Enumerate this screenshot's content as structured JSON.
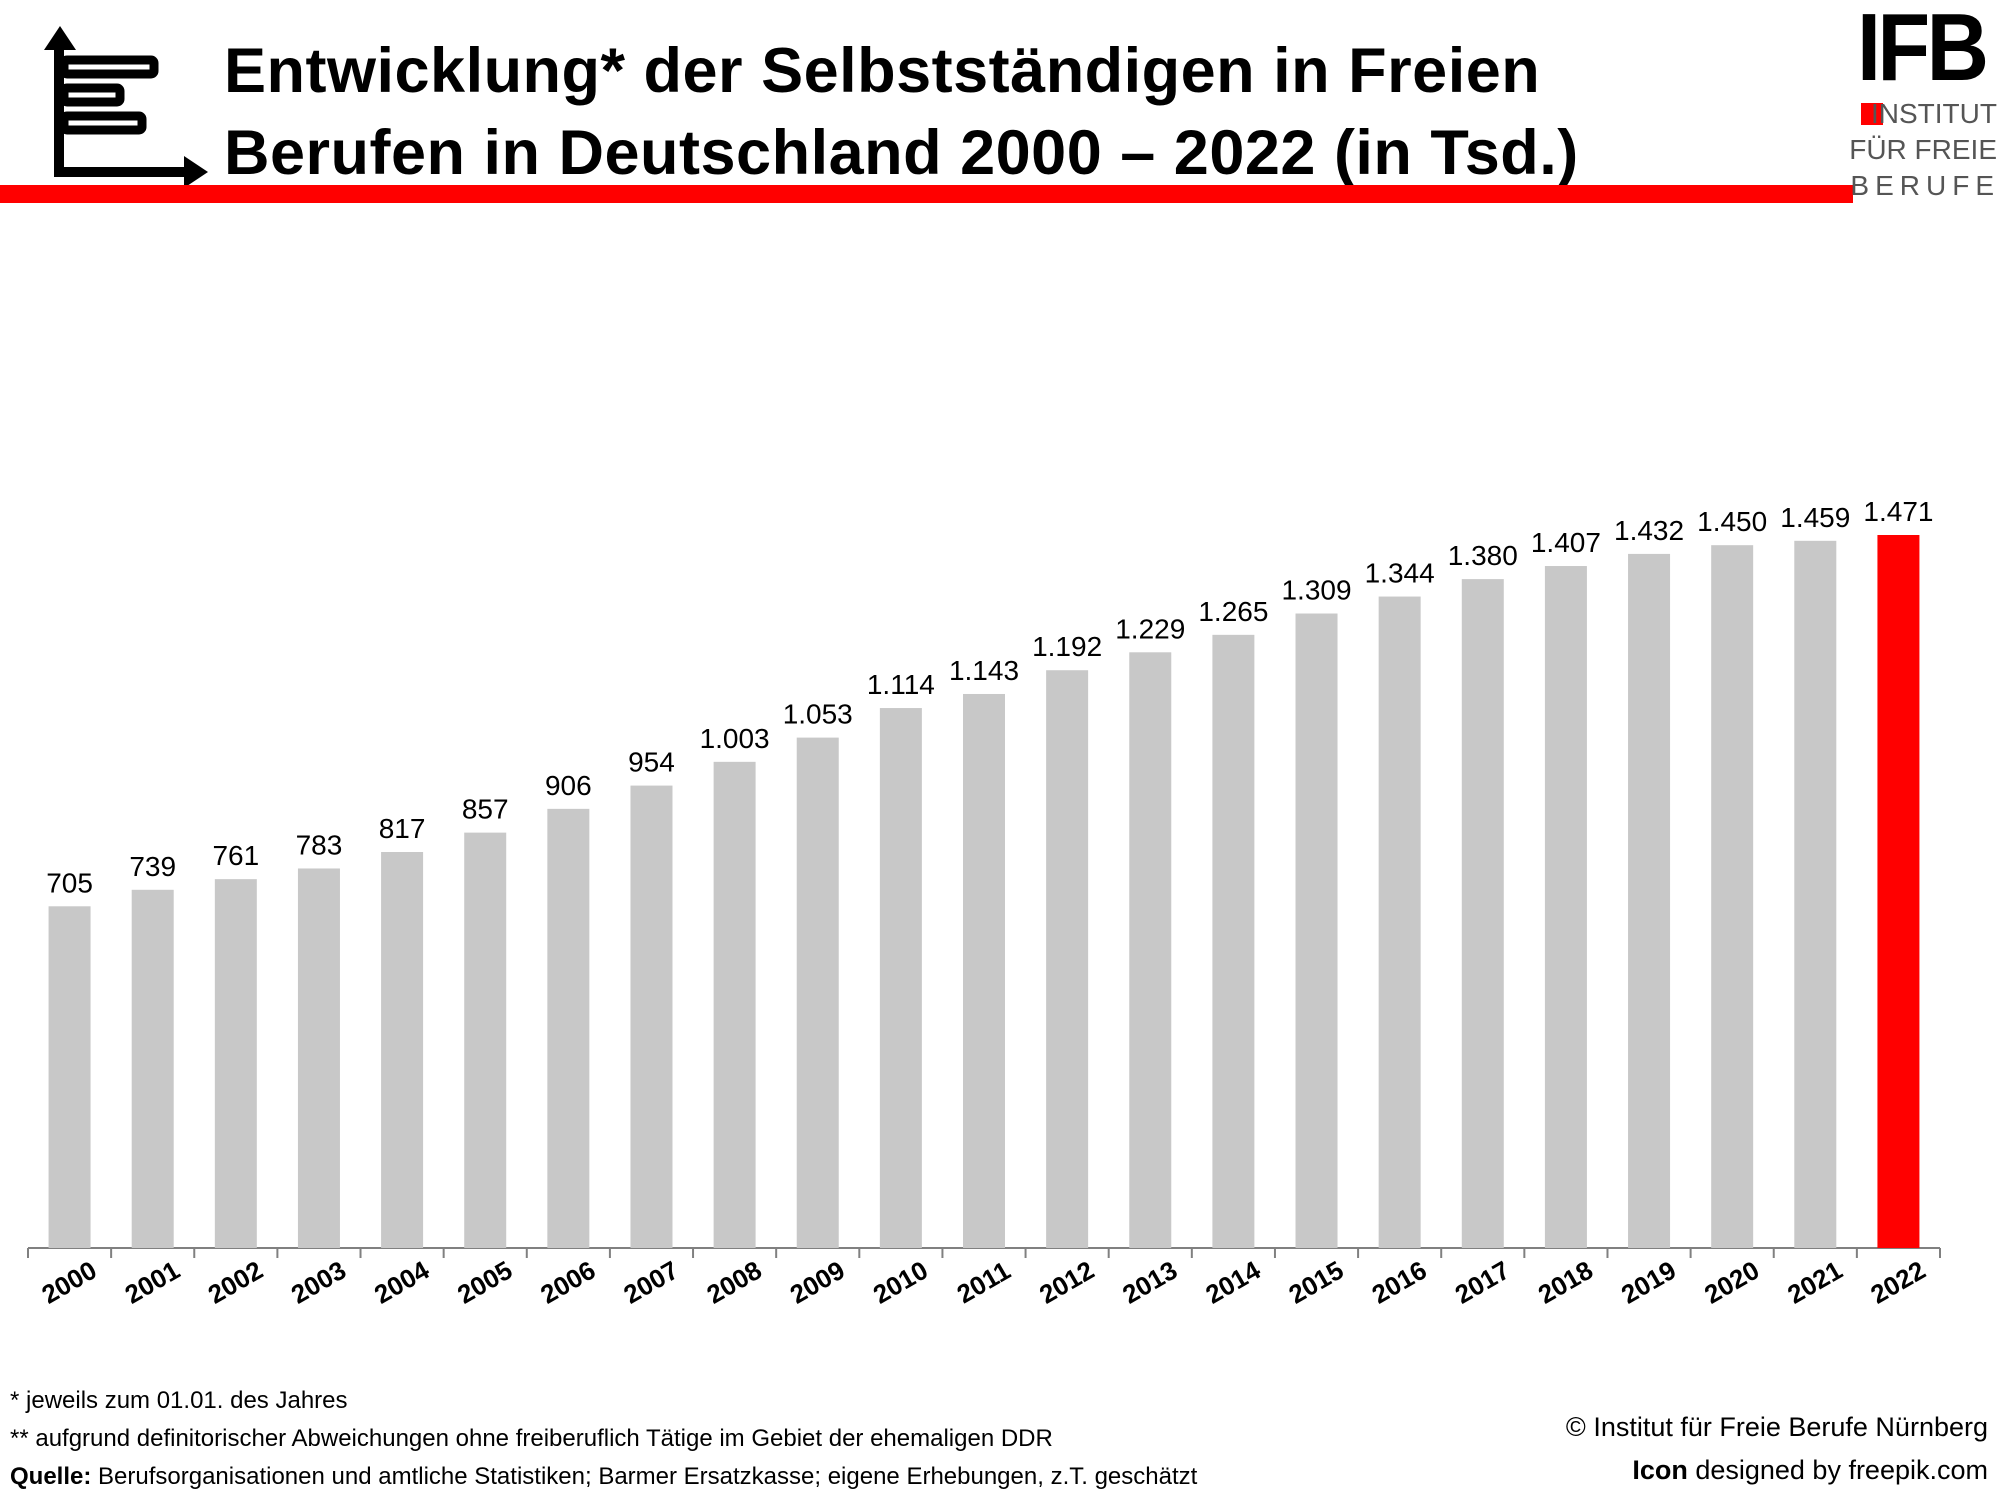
{
  "header": {
    "title_line1": "Entwicklung* der Selbstständigen in Freien",
    "title_line2": "Berufen in Deutschland 2000 – 2022 (in Tsd.)",
    "icon": "bar-chart-axes-icon"
  },
  "logo": {
    "mark": "IFB",
    "line1": "INSTITUT",
    "line2": "FÜR FREIE",
    "line3": "BERUFE"
  },
  "colors": {
    "accent": "#ff0000",
    "bar": "#c8c8c8",
    "highlight_bar": "#ff0000",
    "axis": "#808080"
  },
  "chart_data": {
    "type": "bar",
    "categories": [
      "2000",
      "2001",
      "2002",
      "2003",
      "2004",
      "2005",
      "2006",
      "2007",
      "2008",
      "2009",
      "2010",
      "2011",
      "2012",
      "2013",
      "2014",
      "2015",
      "2016",
      "2017",
      "2018",
      "2019",
      "2020",
      "2021",
      "2022"
    ],
    "values": [
      705,
      739,
      761,
      783,
      817,
      857,
      906,
      954,
      1003,
      1053,
      1114,
      1143,
      1192,
      1229,
      1265,
      1309,
      1344,
      1380,
      1407,
      1432,
      1450,
      1459,
      1471
    ],
    "data_labels": [
      "705",
      "739",
      "761",
      "783",
      "817",
      "857",
      "906",
      "954",
      "1.003",
      "1.053",
      "1.114",
      "1.143",
      "1.192",
      "1.229",
      "1.265",
      "1.309",
      "1.344",
      "1.380",
      "1.407",
      "1.432",
      "1.450",
      "1.459",
      "1.471"
    ],
    "highlight_index": 22,
    "title": "Entwicklung* der Selbstständigen in Freien Berufen in Deutschland 2000 – 2022 (in Tsd.)",
    "xlabel": "",
    "ylabel": "",
    "ylim": [
      0,
      1500
    ],
    "grid": false,
    "legend": "none"
  },
  "footnotes": {
    "note1": "* jeweils zum 01.01. des Jahres",
    "note2": "** aufgrund definitorischer Abweichungen ohne freiberuflich Tätige im Gebiet der ehemaligen DDR",
    "source_label": "Quelle:",
    "source_text": " Berufsorganisationen und amtliche Statistiken; Barmer Ersatzkasse; eigene Erhebungen, z.T. geschätzt"
  },
  "credits": {
    "copyright": "© Institut für Freie Berufe Nürnberg",
    "icon_label": "Icon",
    "icon_text": " designed by freepik.com"
  }
}
